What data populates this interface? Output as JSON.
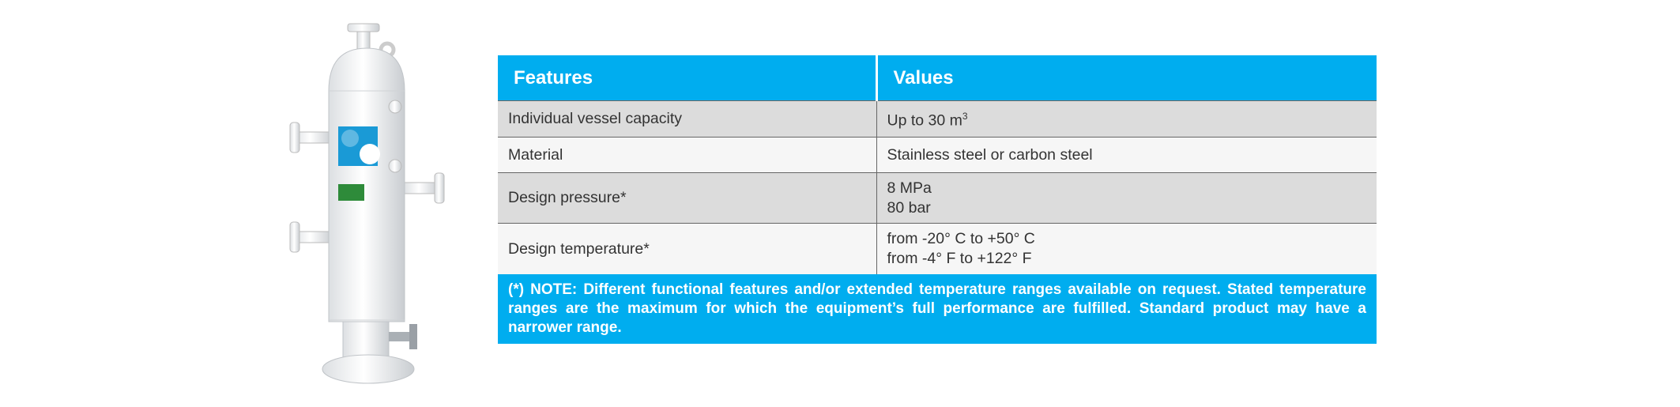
{
  "table": {
    "header": [
      "Features",
      "Values"
    ],
    "rows": [
      {
        "feature": "Individual vessel capacity",
        "value": [
          "Up to 30 m"
        ],
        "value_sup": "3"
      },
      {
        "feature": "Material",
        "value": [
          "Stainless steel or carbon steel"
        ]
      },
      {
        "feature": "Design pressure*",
        "value": [
          "8 MPa",
          "80 bar"
        ]
      },
      {
        "feature": "Design temperature*",
        "value": [
          "from -20° C to +50° C",
          "from -4° F to +122° F"
        ]
      }
    ],
    "note": "(*) NOTE: Different functional features and/or extended temperature ranges available on request. Stated temperature ranges are the maximum for which the equipment’s full performance are fulfilled. Standard product may have a narrower range."
  }
}
